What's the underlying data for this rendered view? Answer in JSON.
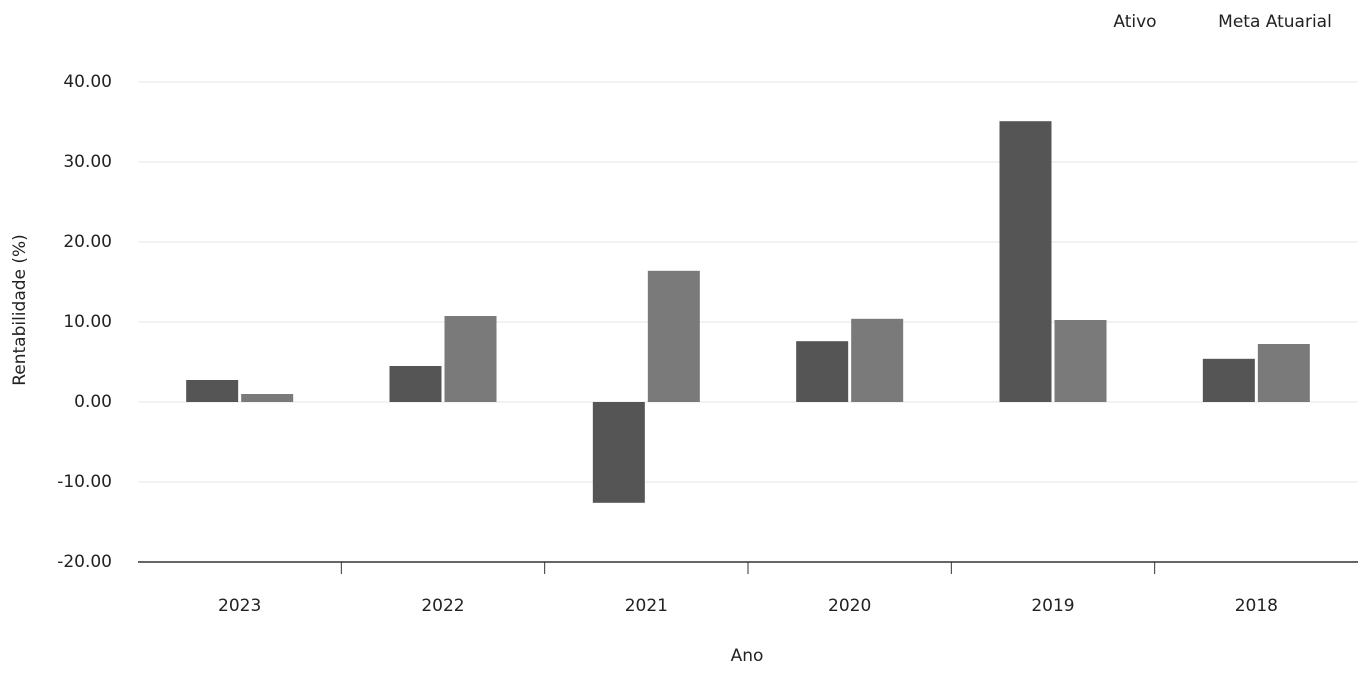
{
  "chart_data": {
    "type": "bar",
    "x_label": "Ano",
    "y_label": "Rentabilidade (%)",
    "categories": [
      "2023",
      "2022",
      "2021",
      "2020",
      "2019",
      "2018"
    ],
    "series": [
      {
        "name": "Ativo",
        "color": "#555555",
        "values": [
          2.75,
          4.5,
          -12.6,
          7.6,
          35.1,
          5.4
        ]
      },
      {
        "name": "Meta Atuarial",
        "color": "#7a7a7a",
        "values": [
          1.0,
          10.75,
          16.4,
          10.4,
          10.25,
          7.25
        ]
      }
    ],
    "ylim": [
      -20,
      40
    ],
    "yticks": [
      {
        "value": -20,
        "label": "-20.00"
      },
      {
        "value": -10,
        "label": "-10.00"
      },
      {
        "value": 0,
        "label": "0.00"
      },
      {
        "value": 10,
        "label": "10.00"
      },
      {
        "value": 20,
        "label": "20.00"
      },
      {
        "value": 30,
        "label": "30.00"
      },
      {
        "value": 40,
        "label": "40.00"
      }
    ],
    "grid": true,
    "legend": "top-right"
  }
}
